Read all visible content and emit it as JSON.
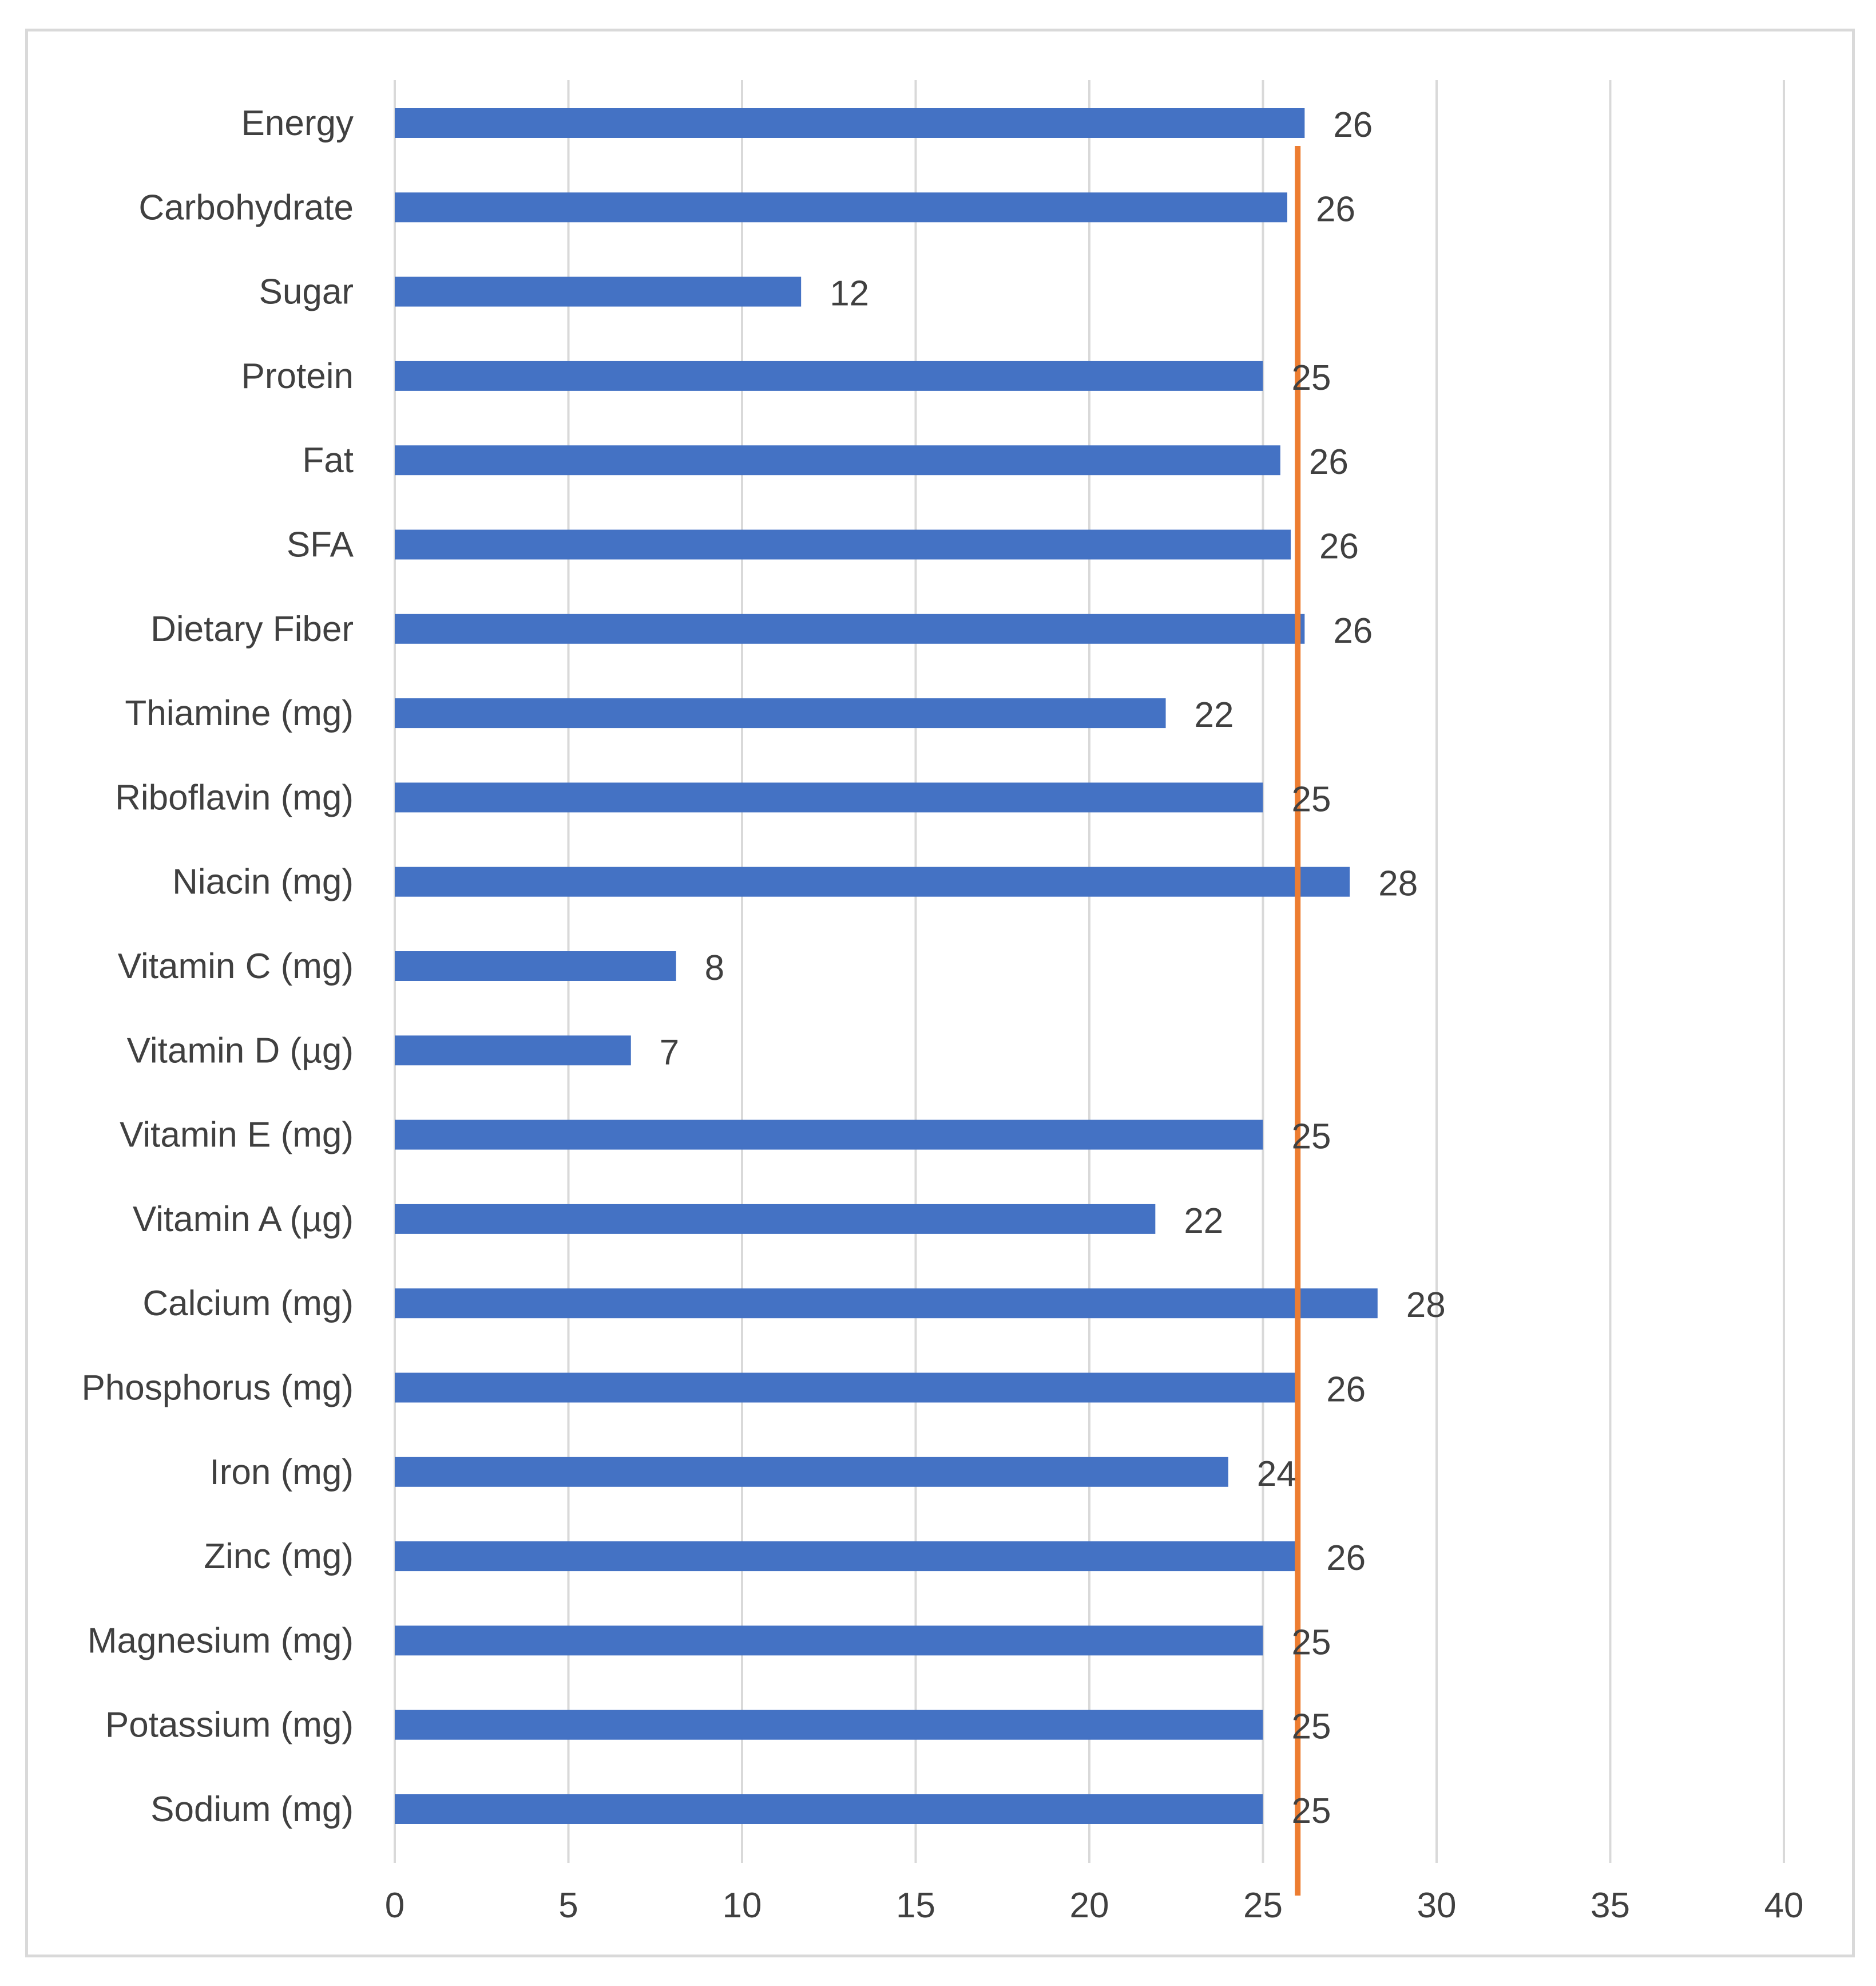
{
  "chart_data": {
    "type": "bar",
    "orientation": "horizontal",
    "categories": [
      "Energy",
      "Carbohydrate",
      "Sugar",
      "Protein",
      "Fat",
      "SFA",
      "Dietary Fiber",
      "Thiamine (mg)",
      "Riboflavin (mg)",
      "Niacin (mg)",
      "Vitamin C (mg)",
      "Vitamin D (µg)",
      "Vitamin E (mg)",
      "Vitamin A (µg)",
      "Calcium (mg)",
      "Phosphorus (mg)",
      "Iron (mg)",
      "Zinc (mg)",
      "Magnesium (mg)",
      "Potassium (mg)",
      "Sodium (mg)"
    ],
    "values": [
      26.2,
      25.7,
      11.7,
      25,
      25.5,
      25.8,
      26.2,
      22.2,
      25,
      27.5,
      8.1,
      6.8,
      25,
      21.9,
      28.3,
      26,
      24,
      26,
      25,
      25,
      25
    ],
    "data_labels": [
      "26",
      "26",
      "12",
      "25",
      "26",
      "26",
      "26",
      "22",
      "25",
      "28",
      "8",
      "7",
      "25",
      "22",
      "28",
      "26",
      "24",
      "26",
      "25",
      "25",
      "25"
    ],
    "x_ticks": [
      "0",
      "5",
      "10",
      "15",
      "20",
      "25",
      "30",
      "35",
      "40"
    ],
    "xlim": [
      0,
      40
    ],
    "reference_line": 26,
    "title": "",
    "xlabel": "",
    "ylabel": "",
    "grid": true,
    "bar_color": "#4472c4",
    "reference_color": "#ed7d31"
  }
}
